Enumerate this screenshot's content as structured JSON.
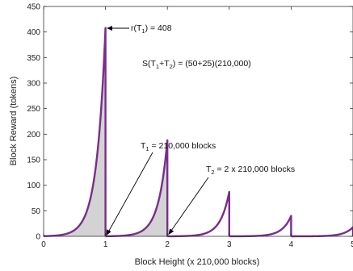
{
  "chart_data": {
    "type": "line",
    "title": "",
    "xlabel": "Block Height (x 210,000 blocks)",
    "ylabel": "Block Reward (tokens)",
    "xlim": [
      0,
      5
    ],
    "ylim": [
      0,
      450
    ],
    "x_ticks": [
      "0",
      "1",
      "2",
      "3",
      "4",
      "5"
    ],
    "y_ticks": [
      "0",
      "50",
      "100",
      "150",
      "200",
      "250",
      "300",
      "350",
      "400",
      "450"
    ],
    "grid": false,
    "line_color": "#7b2d8b",
    "fill_color": "#d3d3d3",
    "curve": {
      "form": "exponential rise within each era, reset at era boundary",
      "growth_rate_per_era": 7.0,
      "peaks": [
        {
          "x": 1,
          "y": 408
        },
        {
          "x": 2,
          "y": 188
        },
        {
          "x": 3,
          "y": 87
        },
        {
          "x": 4,
          "y": 40
        },
        {
          "x": 5,
          "y": 18
        }
      ],
      "shaded_eras": [
        [
          0,
          1
        ],
        [
          1,
          2
        ]
      ]
    },
    "annotations": {
      "peak_label": {
        "main": "r(T",
        "sub": "1",
        "tail": ") = 408"
      },
      "sum_label": {
        "main": "S(T",
        "sub1": "1",
        "mid": "+T",
        "sub2": "2",
        "tail": ") = (50+25)(210,000)"
      },
      "t1_label": {
        "main": "T",
        "sub": "1",
        "tail": " = 210,000 blocks"
      },
      "t2_label": {
        "main": "T",
        "sub": "2",
        "tail": " = 2 x 210,000 blocks"
      }
    }
  }
}
